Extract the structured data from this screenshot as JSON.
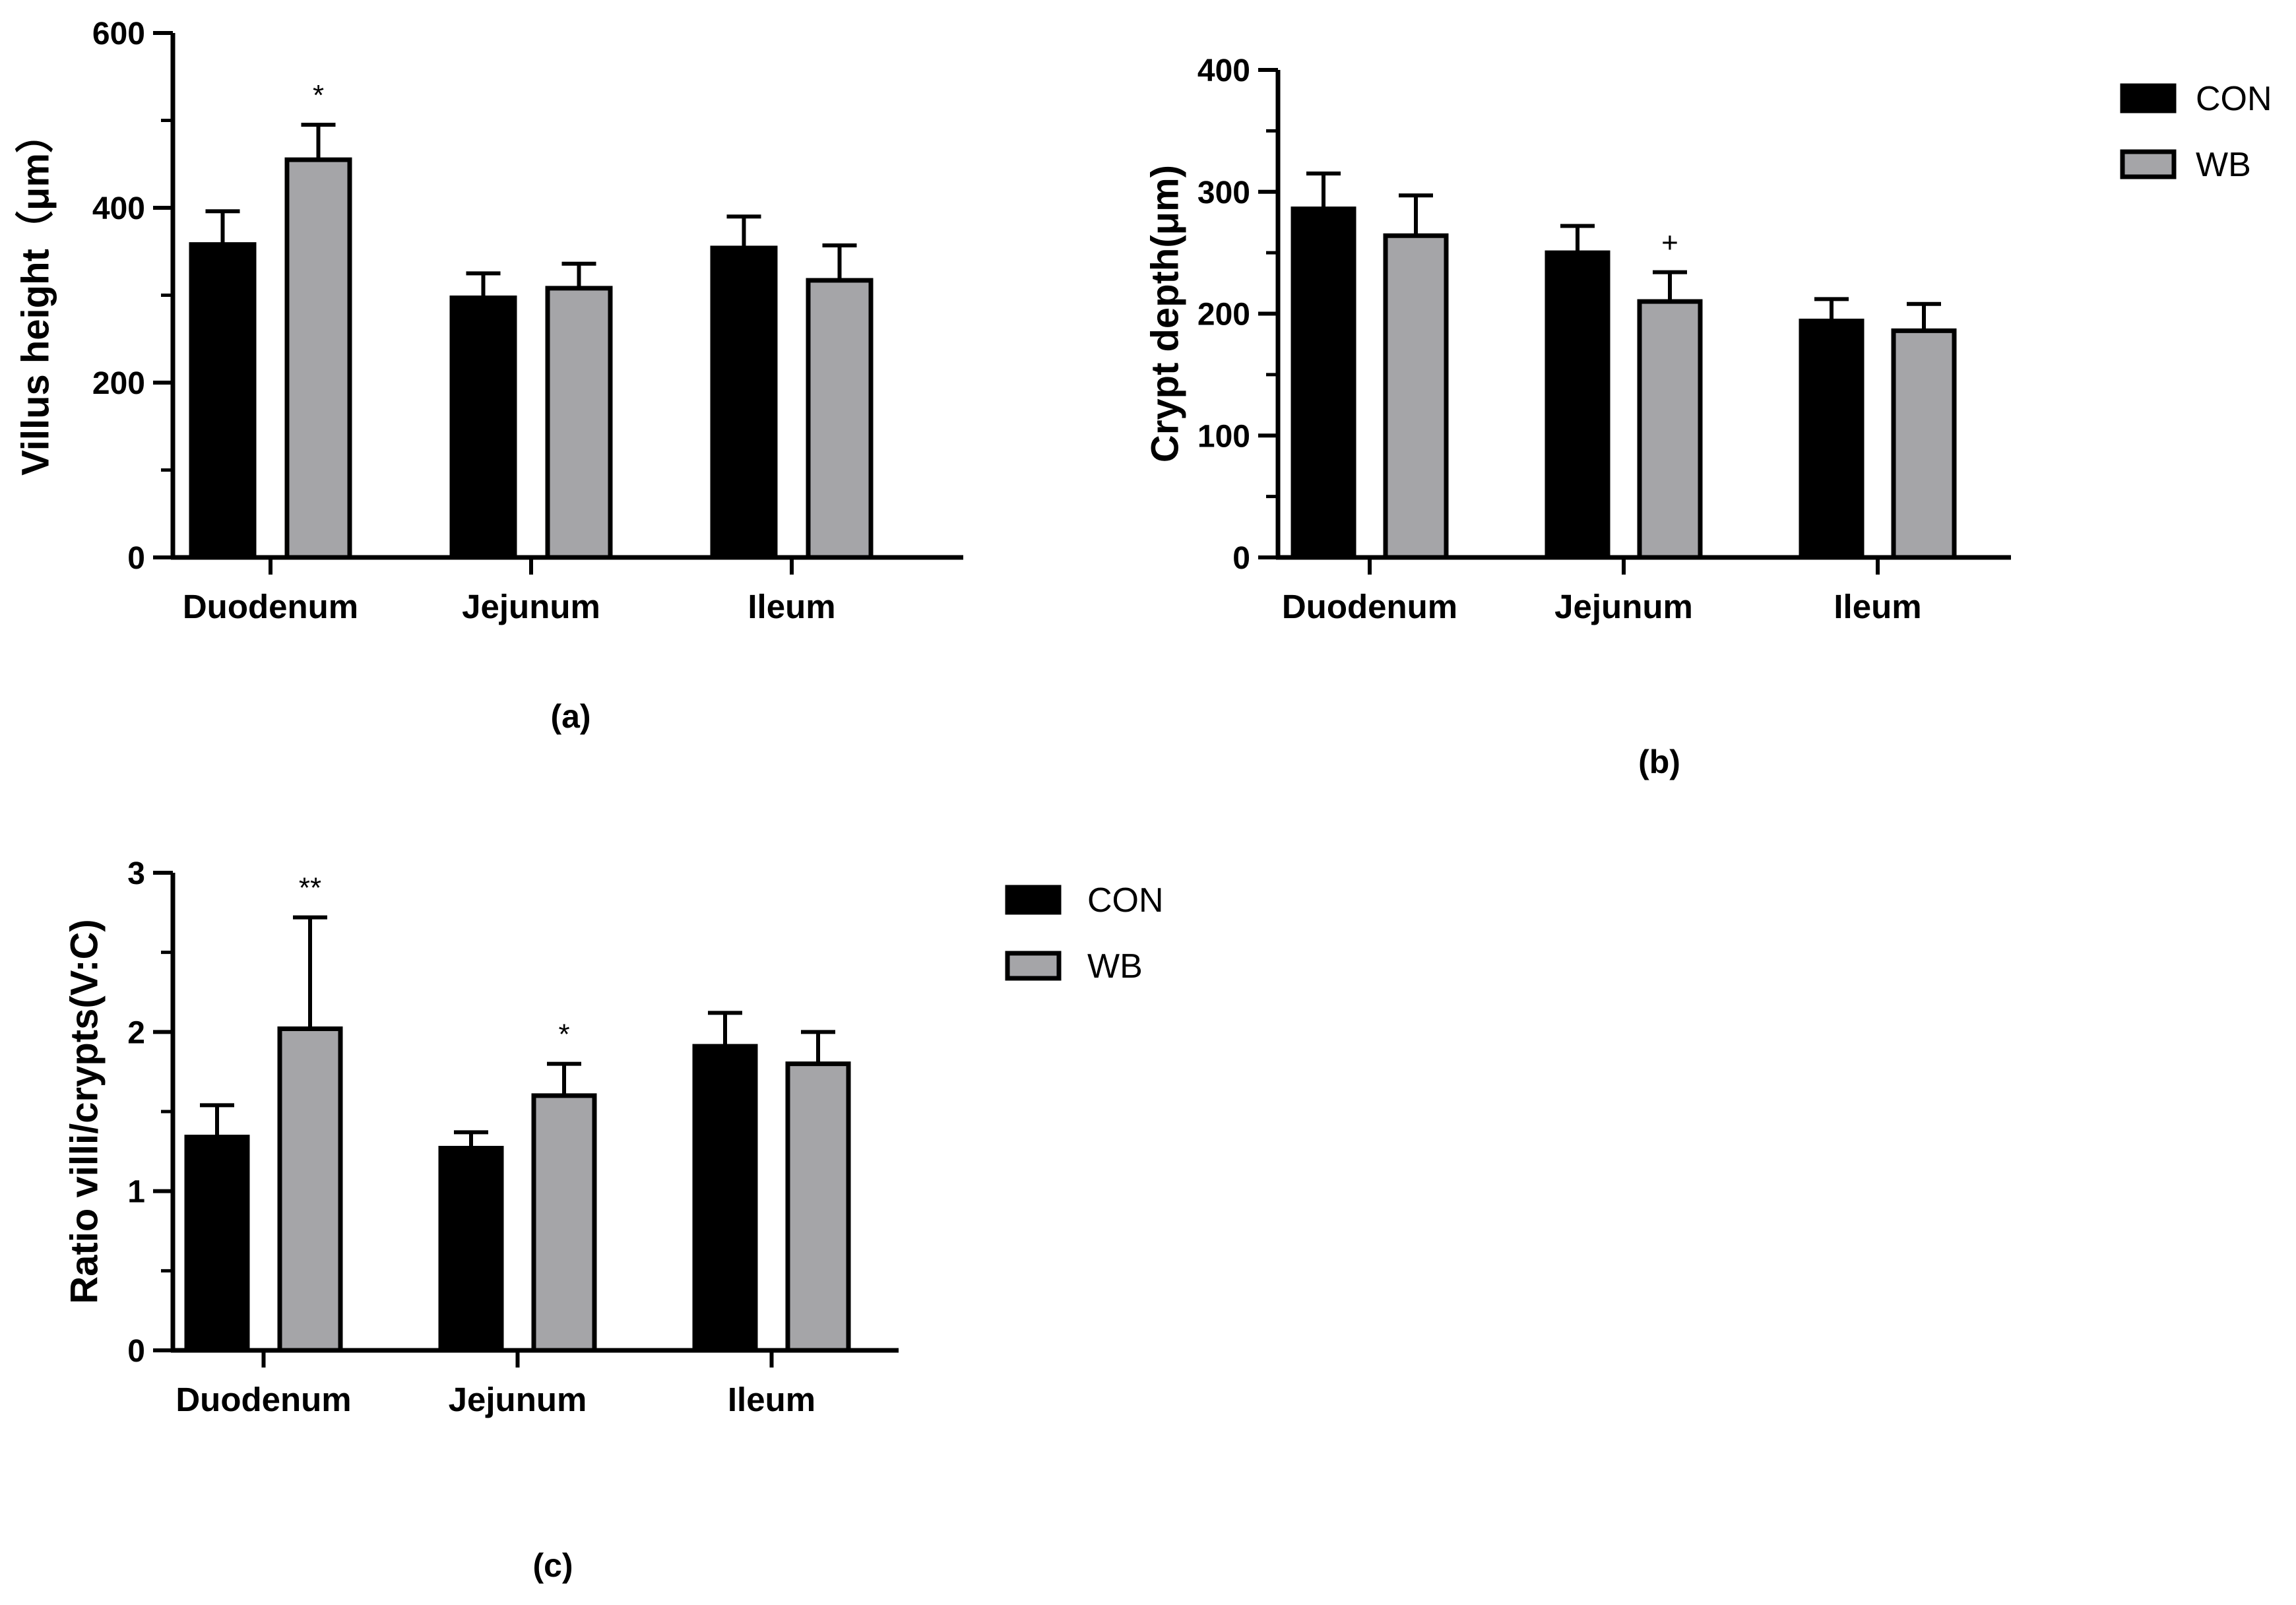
{
  "figure": {
    "series_style": [
      {
        "name": "CON",
        "fill": "#000000"
      },
      {
        "name": "WB",
        "fill": "#a5a5a8"
      }
    ],
    "legends": [
      {
        "id": "legend-top",
        "items": [
          "CON",
          "WB"
        ]
      },
      {
        "id": "legend-bottom",
        "items": [
          "CON",
          "WB"
        ]
      }
    ]
  },
  "chart_data": [
    {
      "id": "a",
      "type": "bar",
      "panel_label": "(a)",
      "title": "",
      "xlabel": "",
      "ylabel": "Villus height（μm）",
      "categories": [
        "Duodenum",
        "Jejunum",
        "Ileum"
      ],
      "ylim": [
        0,
        600
      ],
      "yticks": [
        0,
        200,
        400,
        600
      ],
      "series": [
        {
          "name": "CON",
          "values": [
            358,
            297,
            354
          ],
          "errors": [
            38,
            28,
            36
          ],
          "annotations": [
            "",
            "",
            ""
          ]
        },
        {
          "name": "WB",
          "values": [
            455,
            308,
            317
          ],
          "errors": [
            40,
            28,
            40
          ],
          "annotations": [
            "*",
            "",
            ""
          ]
        }
      ]
    },
    {
      "id": "b",
      "type": "bar",
      "panel_label": "(b)",
      "title": "",
      "xlabel": "",
      "ylabel": "Crypt depth(μm)",
      "categories": [
        "Duodenum",
        "Jejunum",
        "Ileum"
      ],
      "ylim": [
        0,
        400
      ],
      "yticks": [
        0,
        100,
        200,
        300,
        400
      ],
      "series": [
        {
          "name": "CON",
          "values": [
            286,
            250,
            194
          ],
          "errors": [
            29,
            22,
            18
          ],
          "annotations": [
            "",
            "",
            ""
          ]
        },
        {
          "name": "WB",
          "values": [
            264,
            210,
            186
          ],
          "errors": [
            33,
            24,
            22
          ],
          "annotations": [
            "",
            "+",
            ""
          ]
        }
      ]
    },
    {
      "id": "c",
      "type": "bar",
      "panel_label": "(c)",
      "title": "",
      "xlabel": "",
      "ylabel": "Ratio villi/crypts(V:C)",
      "categories": [
        "Duodenum",
        "Jejunum",
        "Ileum"
      ],
      "ylim": [
        0,
        3
      ],
      "yticks": [
        0,
        1,
        2,
        3
      ],
      "series": [
        {
          "name": "CON",
          "values": [
            1.34,
            1.27,
            1.91
          ],
          "errors": [
            0.2,
            0.1,
            0.21
          ],
          "annotations": [
            "",
            "",
            ""
          ]
        },
        {
          "name": "WB",
          "values": [
            2.02,
            1.6,
            1.8
          ],
          "errors": [
            0.7,
            0.2,
            0.2
          ],
          "annotations": [
            "**",
            "*",
            ""
          ]
        }
      ]
    }
  ]
}
